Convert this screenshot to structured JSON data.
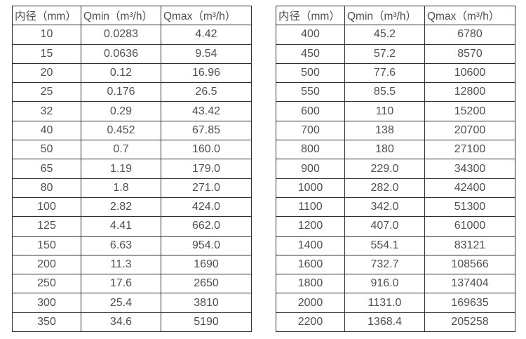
{
  "page": {
    "background_color": "#ffffff",
    "table_border_color": "#2f2f2f",
    "table_text_color": "#4f4f4f"
  },
  "chart_data": [
    {
      "type": "table",
      "title": "",
      "columns": [
        "内径（mm）",
        "Qmin（m³/h）",
        "Qmax（m³/h）"
      ],
      "rows": [
        [
          "10",
          "0.0283",
          "4.42"
        ],
        [
          "15",
          "0.0636",
          "9.54"
        ],
        [
          "20",
          "0.12",
          "16.96"
        ],
        [
          "25",
          "0.176",
          "26.5"
        ],
        [
          "32",
          "0.29",
          "43.42"
        ],
        [
          "40",
          "0.452",
          "67.85"
        ],
        [
          "50",
          "0.7",
          "160.0"
        ],
        [
          "65",
          "1.19",
          "179.0"
        ],
        [
          "80",
          "1.8",
          "271.0"
        ],
        [
          "100",
          "2.82",
          "424.0"
        ],
        [
          "125",
          "4.41",
          "662.0"
        ],
        [
          "150",
          "6.63",
          "954.0"
        ],
        [
          "200",
          "11.3",
          "1690"
        ],
        [
          "250",
          "17.6",
          "2650"
        ],
        [
          "300",
          "25.4",
          "3810"
        ],
        [
          "350",
          "34.6",
          "5190"
        ]
      ]
    },
    {
      "type": "table",
      "title": "",
      "columns": [
        "内径（mm）",
        "Qmin（m³/h）",
        "Qmax（m³/h）"
      ],
      "rows": [
        [
          "400",
          "45.2",
          "6780"
        ],
        [
          "450",
          "57.2",
          "8570"
        ],
        [
          "500",
          "77.6",
          "10600"
        ],
        [
          "550",
          "85.5",
          "12800"
        ],
        [
          "600",
          "110",
          "15200"
        ],
        [
          "700",
          "138",
          "20700"
        ],
        [
          "800",
          "180",
          "27100"
        ],
        [
          "900",
          "229.0",
          "34300"
        ],
        [
          "1000",
          "282.0",
          "42400"
        ],
        [
          "1100",
          "342.0",
          "51300"
        ],
        [
          "1200",
          "407.0",
          "61000"
        ],
        [
          "1400",
          "554.1",
          "83121"
        ],
        [
          "1600",
          "732.7",
          "108566"
        ],
        [
          "1800",
          "916.0",
          "137404"
        ],
        [
          "2000",
          "1131.0",
          "169635"
        ],
        [
          "2200",
          "1368.4",
          "205258"
        ]
      ]
    }
  ]
}
